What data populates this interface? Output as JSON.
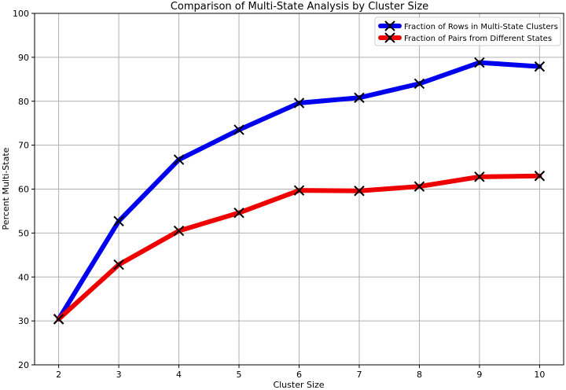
{
  "chart_data": {
    "type": "line",
    "title": "Comparison of Multi-State Analysis by Cluster Size",
    "xlabel": "Cluster Size",
    "ylabel": "Percent Multi-State",
    "x": [
      2,
      3,
      4,
      5,
      6,
      7,
      8,
      9,
      10
    ],
    "xlim": [
      1.6,
      10.4
    ],
    "ylim": [
      20,
      100
    ],
    "yticks": [
      20,
      30,
      40,
      50,
      60,
      70,
      80,
      90,
      100
    ],
    "grid": true,
    "legend_position": "top-right",
    "marker": "x",
    "series": [
      {
        "name": "Fraction of Rows in Multi-State Clusters",
        "color": "#0000ee",
        "values": [
          30.4,
          52.7,
          66.7,
          73.5,
          79.6,
          80.8,
          84.0,
          88.8,
          87.9
        ]
      },
      {
        "name": "Fraction of Pairs from Different States",
        "color": "#ee0000",
        "values": [
          30.4,
          42.8,
          50.5,
          54.6,
          59.7,
          59.6,
          60.6,
          62.8,
          63.0
        ]
      }
    ]
  }
}
